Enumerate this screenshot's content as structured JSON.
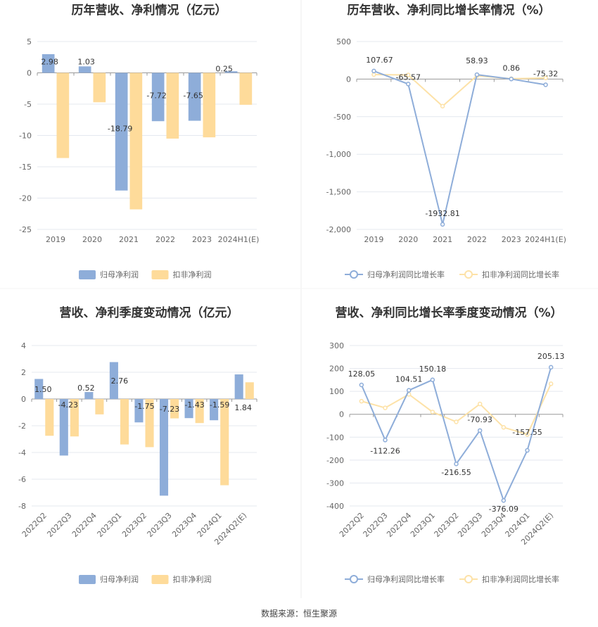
{
  "colors": {
    "primary": "#8eadd9",
    "secondary": "#fedb9a",
    "primary_line": "#8eadd9",
    "secondary_line": "#fde2a8",
    "grid": "#e4e8ef",
    "axis": "#999999"
  },
  "source_text": "数据来源：恒生聚源",
  "chart_data": [
    {
      "type": "bar",
      "title": "历年营收、净利情况（亿元）",
      "categories": [
        "2019",
        "2020",
        "2021",
        "2022",
        "2023",
        "2024H1(E)"
      ],
      "series": [
        {
          "name": "归母净利润",
          "values": [
            2.98,
            1.03,
            -18.79,
            -7.72,
            -7.65,
            0.25
          ],
          "labels": [
            "2.98",
            "1.03",
            "-18.79",
            "-7.72",
            "-7.65",
            "0.25"
          ]
        },
        {
          "name": "扣非净利润",
          "values": [
            -13.6,
            -4.7,
            -21.8,
            -10.5,
            -10.3,
            -5.1
          ]
        }
      ],
      "ylim": [
        -25,
        5
      ],
      "yticks": [
        5,
        0,
        -5,
        -10,
        -15,
        -20,
        -25
      ],
      "legend": "bottom"
    },
    {
      "type": "line",
      "title": "历年营收、净利同比增长率情况（%）",
      "categories": [
        "2019",
        "2020",
        "2021",
        "2022",
        "2023",
        "2024H1(E)"
      ],
      "series": [
        {
          "name": "归母净利润同比增长率",
          "values": [
            107.67,
            -65.57,
            -1932.81,
            58.93,
            0.86,
            -75.32
          ],
          "labels": [
            "107.67",
            "-65.57",
            "-1932.81",
            "58.93",
            "0.86",
            "-75.32"
          ]
        },
        {
          "name": "扣非净利润同比增长率",
          "values": [
            60,
            55,
            -360,
            45,
            5,
            15
          ]
        }
      ],
      "ylim": [
        -2000,
        500
      ],
      "yticks": [
        500,
        0,
        -500,
        -1000,
        -1500,
        -2000
      ],
      "ytick_labels": [
        "500",
        "0",
        "-500",
        "-1,000",
        "-1,500",
        "-2,000"
      ],
      "legend": "bottom"
    },
    {
      "type": "bar",
      "title": "营收、净利季度变动情况（亿元）",
      "categories": [
        "2022Q2",
        "2022Q3",
        "2022Q4",
        "2023Q1",
        "2023Q2",
        "2023Q3",
        "2023Q4",
        "2024Q1",
        "2024Q2(E)"
      ],
      "series": [
        {
          "name": "归母净利润",
          "values": [
            1.5,
            -4.23,
            0.52,
            2.76,
            -1.75,
            -7.23,
            -1.43,
            -1.59,
            1.84
          ],
          "labels": [
            "1.50",
            "-4.23",
            "0.52",
            "2.76",
            "-1.75",
            "-7.23",
            "-1.43",
            "-1.59",
            "1.84"
          ]
        },
        {
          "name": "扣非净利润",
          "values": [
            -2.75,
            -2.8,
            -1.15,
            -3.4,
            -3.6,
            -1.45,
            -1.8,
            -6.45,
            1.25
          ]
        }
      ],
      "ylim": [
        -8,
        4
      ],
      "yticks": [
        4,
        2,
        0,
        -2,
        -4,
        -6,
        -8
      ],
      "legend": "bottom"
    },
    {
      "type": "line",
      "title": "营收、净利同比增长率季度变动情况（%）",
      "categories": [
        "2022Q2",
        "2022Q3",
        "2022Q4",
        "2023Q1",
        "2023Q2",
        "2023Q3",
        "2023Q4",
        "2024Q1",
        "2024Q2(E)"
      ],
      "series": [
        {
          "name": "归母净利润同比增长率",
          "values": [
            128.05,
            -112.26,
            104.51,
            150.18,
            -216.55,
            -70.93,
            -376.09,
            -157.55,
            205.13
          ],
          "labels": [
            "128.05",
            "-112.26",
            "104.51",
            "150.18",
            "-216.55",
            "-70.93",
            "-376.09",
            "-157.55",
            "205.13"
          ]
        },
        {
          "name": "扣非净利润同比增长率",
          "values": [
            57,
            28,
            87,
            10,
            -33,
            45,
            -57,
            -88,
            133
          ]
        }
      ],
      "ylim": [
        -400,
        300
      ],
      "yticks": [
        300,
        200,
        100,
        0,
        -100,
        -200,
        -300,
        -400
      ],
      "legend": "bottom"
    }
  ]
}
